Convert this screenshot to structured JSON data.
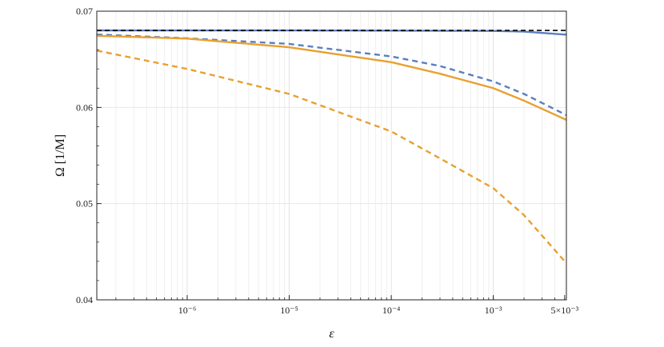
{
  "chart_data": {
    "type": "line",
    "title": "",
    "xlabel": "ε",
    "ylabel": "Ω [1/M]",
    "x_scale": "log",
    "xlim": [
      1.3e-07,
      0.0052
    ],
    "ylim": [
      0.04,
      0.07
    ],
    "grid": true,
    "x_ticks": [
      {
        "value": 1e-06,
        "label": "10⁻⁶"
      },
      {
        "value": 1e-05,
        "label": "10⁻⁵"
      },
      {
        "value": 0.0001,
        "label": "10⁻⁴"
      },
      {
        "value": 0.001,
        "label": "10⁻³"
      },
      {
        "value": 0.005,
        "label": "5×10⁻³"
      }
    ],
    "y_ticks": [
      {
        "value": 0.04,
        "label": "0.04"
      },
      {
        "value": 0.05,
        "label": "0.05"
      },
      {
        "value": 0.06,
        "label": "0.06"
      },
      {
        "value": 0.07,
        "label": "0.07"
      }
    ],
    "series": [
      {
        "color": "#5b7fbf",
        "style": "solid",
        "x": [
          1.3e-07,
          1e-06,
          1e-05,
          0.0001,
          0.001,
          0.002,
          0.0052
        ],
        "y": [
          0.068,
          0.068,
          0.068,
          0.06798,
          0.06795,
          0.06788,
          0.06756
        ]
      },
      {
        "color": "#5b7fbf",
        "style": "dashed",
        "x": [
          1.3e-07,
          1e-06,
          1e-05,
          0.0001,
          0.0003,
          0.001,
          0.002,
          0.0052
        ],
        "y": [
          0.06758,
          0.06718,
          0.0666,
          0.0653,
          0.0643,
          0.0627,
          0.0614,
          0.0592
        ]
      },
      {
        "color": "#e8a030",
        "style": "solid",
        "x": [
          1.3e-07,
          1e-06,
          1e-05,
          0.0001,
          0.0003,
          0.001,
          0.002,
          0.0052
        ],
        "y": [
          0.06745,
          0.06715,
          0.06625,
          0.0647,
          0.0635,
          0.062,
          0.0607,
          0.0587
        ]
      },
      {
        "color": "#e8a030",
        "style": "dashed",
        "x": [
          1.3e-07,
          1e-06,
          1e-05,
          0.0001,
          0.0003,
          0.001,
          0.002,
          0.0052
        ],
        "y": [
          0.0659,
          0.064,
          0.0614,
          0.0575,
          0.0547,
          0.0516,
          0.0488,
          0.0438
        ]
      },
      {
        "color": "#000000",
        "style": "dashed",
        "x": [
          1.3e-07,
          0.0052
        ],
        "y": [
          0.068,
          0.068
        ]
      }
    ]
  }
}
